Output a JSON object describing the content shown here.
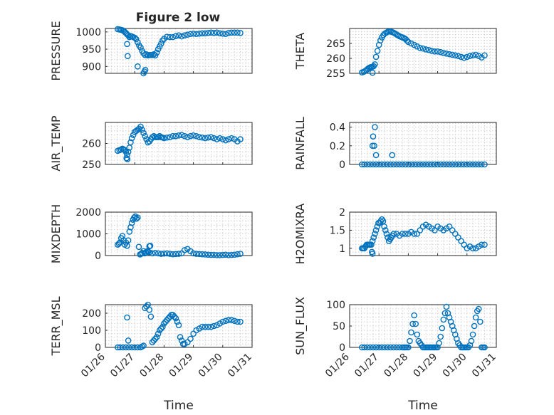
{
  "figure": {
    "title": "Figure 2 low",
    "xlabel": "Time"
  },
  "chart_data": [
    {
      "type": "scatter",
      "ylabel": "PRESSURE",
      "ylim": [
        880,
        1010
      ],
      "yticks": [
        900,
        950,
        1000
      ],
      "xlim": [
        0,
        5
      ],
      "xticks": [
        "01/26",
        "01/27",
        "01/28",
        "01/29",
        "01/30",
        "01/31"
      ],
      "x": [
        0.42,
        0.48,
        0.53,
        0.58,
        0.62,
        0.66,
        0.7,
        0.74,
        0.78,
        0.82,
        0.86,
        0.9,
        0.95,
        1.0,
        1.05,
        1.1,
        1.15,
        1.2,
        1.25,
        1.3,
        1.35,
        1.4,
        1.45,
        1.5,
        1.55,
        1.6,
        1.65,
        1.7,
        1.75,
        1.8,
        1.85,
        1.9,
        1.95,
        2.0,
        2.1,
        2.2,
        2.3,
        2.4,
        2.5,
        2.6,
        2.7,
        2.8,
        2.9,
        3.0,
        3.1,
        3.2,
        3.3,
        3.4,
        3.5,
        3.6,
        3.7,
        3.8,
        3.9,
        4.0,
        4.1,
        4.2,
        4.3,
        4.4,
        4.5,
        4.6,
        0.74,
        0.76,
        1.1,
        1.3,
        1.33,
        1.36
      ],
      "y": [
        1008,
        1007,
        1006,
        1005,
        1003,
        1000,
        997,
        993,
        990,
        985,
        988,
        987,
        985,
        983,
        979,
        970,
        961,
        955,
        945,
        938,
        933,
        935,
        932,
        933,
        933,
        933,
        935,
        932,
        940,
        950,
        958,
        966,
        975,
        980,
        986,
        985,
        985,
        988,
        990,
        987,
        990,
        992,
        994,
        995,
        994,
        995,
        996,
        996,
        997,
        998,
        997,
        998,
        996,
        995,
        994,
        997,
        998,
        998,
        998,
        997,
        965,
        930,
        900,
        880,
        885,
        890
      ]
    },
    {
      "type": "scatter",
      "ylabel": "THETA",
      "ylim": [
        255,
        270
      ],
      "yticks": [
        255,
        260,
        265
      ],
      "xlim": [
        0,
        5
      ],
      "xticks": [
        "01/26",
        "01/27",
        "01/28",
        "01/29",
        "01/30",
        "01/31"
      ],
      "x": [
        0.42,
        0.48,
        0.53,
        0.58,
        0.62,
        0.66,
        0.7,
        0.74,
        0.78,
        0.82,
        0.86,
        0.9,
        0.95,
        1.0,
        1.05,
        1.1,
        1.15,
        1.2,
        1.25,
        1.3,
        1.35,
        1.4,
        1.45,
        1.5,
        1.55,
        1.6,
        1.65,
        1.7,
        1.75,
        1.8,
        1.85,
        1.9,
        1.95,
        2.0,
        2.1,
        2.2,
        2.3,
        2.4,
        2.5,
        2.6,
        2.7,
        2.8,
        2.9,
        3.0,
        3.1,
        3.2,
        3.3,
        3.4,
        3.5,
        3.6,
        3.7,
        3.8,
        3.9,
        4.0,
        4.1,
        4.2,
        4.3,
        4.4,
        4.5,
        4.6,
        0.78
      ],
      "y": [
        255.3,
        255.5,
        255.8,
        256.1,
        256.5,
        256.8,
        257.0,
        257.1,
        257.2,
        257.4,
        258.0,
        260.5,
        262.5,
        264.5,
        266.0,
        267.0,
        267.8,
        268.3,
        268.6,
        268.9,
        269.0,
        269.0,
        268.8,
        268.6,
        268.3,
        268.0,
        267.7,
        267.4,
        267.2,
        267.0,
        266.8,
        266.5,
        266.0,
        265.5,
        265.0,
        264.5,
        264.0,
        263.5,
        263.3,
        263.0,
        262.8,
        262.5,
        262.3,
        262.3,
        262.1,
        261.8,
        261.6,
        261.4,
        261.2,
        261.0,
        260.8,
        260.5,
        260.2,
        260.5,
        260.8,
        261.0,
        261.2,
        260.8,
        260.3,
        261.0,
        255.2
      ]
    },
    {
      "type": "scatter",
      "ylabel": "AIR_TEMP",
      "ylim": [
        250,
        270
      ],
      "yticks": [
        250,
        260
      ],
      "xlim": [
        0,
        5
      ],
      "xticks": [
        "01/26",
        "01/27",
        "01/28",
        "01/29",
        "01/30",
        "01/31"
      ],
      "x": [
        0.42,
        0.48,
        0.53,
        0.58,
        0.62,
        0.66,
        0.7,
        0.74,
        0.78,
        0.82,
        0.86,
        0.9,
        0.95,
        1.0,
        1.05,
        1.1,
        1.15,
        1.2,
        1.25,
        1.3,
        1.35,
        1.4,
        1.45,
        1.5,
        1.55,
        1.6,
        1.65,
        1.7,
        1.75,
        1.8,
        1.85,
        1.9,
        1.95,
        2.0,
        2.1,
        2.2,
        2.3,
        2.4,
        2.5,
        2.6,
        2.7,
        2.8,
        2.9,
        3.0,
        3.1,
        3.2,
        3.3,
        3.4,
        3.5,
        3.6,
        3.7,
        3.8,
        3.9,
        4.0,
        4.1,
        4.2,
        4.3,
        4.4,
        4.5,
        4.6,
        0.72,
        0.75
      ],
      "y": [
        256.5,
        256.8,
        257.0,
        257.5,
        257.2,
        256.8,
        256.0,
        254.5,
        256.0,
        258.0,
        260.5,
        262.5,
        264.0,
        265.5,
        266.0,
        266.5,
        267.0,
        268.0,
        266.5,
        265.0,
        263.5,
        262.0,
        260.5,
        261.0,
        262.0,
        263.0,
        263.5,
        263.0,
        263.0,
        263.0,
        263.5,
        263.0,
        262.8,
        262.5,
        262.8,
        263.0,
        263.5,
        263.5,
        263.8,
        264.0,
        263.5,
        263.0,
        263.5,
        263.8,
        263.5,
        263.0,
        262.8,
        262.5,
        262.8,
        263.0,
        262.5,
        262.0,
        262.5,
        262.0,
        261.5,
        262.0,
        262.5,
        262.0,
        261.0,
        262.0,
        253.0,
        252.5
      ]
    },
    {
      "type": "scatter",
      "ylabel": "RAINFALL",
      "ylim": [
        0,
        0.45
      ],
      "yticks": [
        0,
        0.2,
        0.4
      ],
      "xlim": [
        0,
        5
      ],
      "xticks": [
        "01/26",
        "01/27",
        "01/28",
        "01/29",
        "01/30",
        "01/31"
      ],
      "x": [
        0.42,
        0.5,
        0.6,
        0.7,
        0.8,
        0.9,
        1.0,
        1.1,
        1.2,
        1.3,
        1.4,
        1.5,
        1.6,
        1.7,
        1.8,
        1.9,
        2.0,
        2.1,
        2.2,
        2.3,
        2.4,
        2.5,
        2.6,
        2.7,
        2.8,
        2.9,
        3.0,
        3.1,
        3.2,
        3.3,
        3.4,
        3.5,
        3.6,
        3.7,
        3.8,
        3.9,
        4.0,
        4.1,
        4.2,
        4.3,
        4.4,
        4.5,
        4.6,
        0.78,
        0.8,
        0.84,
        0.86,
        0.9,
        1.45
      ],
      "y": [
        0,
        0,
        0,
        0,
        0,
        0,
        0,
        0,
        0,
        0,
        0,
        0,
        0,
        0,
        0,
        0,
        0,
        0,
        0,
        0,
        0,
        0,
        0,
        0,
        0,
        0,
        0,
        0,
        0,
        0,
        0,
        0,
        0,
        0,
        0,
        0,
        0,
        0,
        0,
        0,
        0,
        0,
        0,
        0.2,
        0.3,
        0.2,
        0.4,
        0.1,
        0.1
      ]
    },
    {
      "type": "scatter",
      "ylabel": "MIXDEPTH",
      "ylim": [
        0,
        2000
      ],
      "yticks": [
        0,
        1000,
        2000
      ],
      "xlim": [
        0,
        5
      ],
      "xticks": [
        "01/26",
        "01/27",
        "01/28",
        "01/29",
        "01/30",
        "01/31"
      ],
      "x": [
        0.42,
        0.46,
        0.5,
        0.54,
        0.58,
        0.62,
        0.66,
        0.7,
        0.74,
        0.78,
        0.82,
        0.86,
        0.9,
        0.94,
        0.98,
        1.02,
        1.06,
        1.1,
        1.14,
        1.18,
        1.22,
        1.26,
        1.3,
        1.34,
        1.38,
        1.42,
        1.46,
        1.5,
        1.6,
        1.7,
        1.8,
        1.9,
        2.0,
        2.1,
        2.2,
        2.3,
        2.4,
        2.5,
        2.6,
        2.7,
        2.8,
        2.9,
        3.0,
        3.1,
        3.2,
        3.3,
        3.4,
        3.5,
        3.6,
        3.7,
        3.8,
        3.9,
        4.0,
        4.1,
        4.2,
        4.3,
        4.4,
        4.5,
        4.6,
        1.5,
        1.53
      ],
      "y": [
        500,
        550,
        600,
        800,
        900,
        700,
        500,
        600,
        450,
        700,
        1100,
        1300,
        1500,
        1650,
        1750,
        1800,
        1700,
        1750,
        400,
        50,
        80,
        120,
        200,
        100,
        150,
        200,
        180,
        150,
        100,
        120,
        100,
        80,
        90,
        100,
        80,
        60,
        70,
        80,
        100,
        250,
        300,
        200,
        100,
        80,
        70,
        60,
        50,
        40,
        30,
        30,
        20,
        20,
        30,
        40,
        20,
        30,
        40,
        60,
        80,
        430,
        450
      ]
    },
    {
      "type": "scatter",
      "ylabel": "H2OMIXRA",
      "ylim": [
        0.8,
        2
      ],
      "yticks": [
        1,
        1.5,
        2
      ],
      "xlim": [
        0,
        5
      ],
      "xticks": [
        "01/26",
        "01/27",
        "01/28",
        "01/29",
        "01/30",
        "01/31"
      ],
      "x": [
        0.42,
        0.46,
        0.5,
        0.54,
        0.58,
        0.62,
        0.66,
        0.7,
        0.74,
        0.78,
        0.82,
        0.86,
        0.9,
        0.94,
        0.98,
        1.02,
        1.06,
        1.1,
        1.14,
        1.18,
        1.22,
        1.26,
        1.3,
        1.34,
        1.38,
        1.42,
        1.46,
        1.5,
        1.6,
        1.7,
        1.8,
        1.9,
        2.0,
        2.1,
        2.2,
        2.3,
        2.4,
        2.5,
        2.6,
        2.7,
        2.8,
        2.9,
        3.0,
        3.1,
        3.2,
        3.3,
        3.4,
        3.5,
        3.6,
        3.7,
        3.8,
        3.9,
        4.0,
        4.1,
        4.2,
        4.3,
        4.4,
        4.5,
        4.6,
        0.76,
        0.78
      ],
      "y": [
        1.0,
        1.0,
        1.0,
        1.05,
        1.1,
        1.1,
        1.1,
        1.1,
        1.1,
        1.2,
        1.3,
        1.4,
        1.5,
        1.6,
        1.7,
        1.7,
        1.75,
        1.8,
        1.75,
        1.6,
        1.5,
        1.4,
        1.3,
        1.2,
        1.25,
        1.3,
        1.35,
        1.4,
        1.4,
        1.35,
        1.4,
        1.4,
        1.4,
        1.45,
        1.4,
        1.4,
        1.5,
        1.6,
        1.65,
        1.6,
        1.55,
        1.5,
        1.6,
        1.55,
        1.5,
        1.55,
        1.6,
        1.5,
        1.4,
        1.3,
        1.2,
        1.1,
        1.0,
        1.05,
        1.0,
        1.0,
        1.05,
        1.1,
        1.1,
        0.9,
        0.85
      ]
    },
    {
      "type": "scatter",
      "ylabel": "TERR_MSL",
      "ylim": [
        0,
        250
      ],
      "yticks": [
        0,
        100,
        200
      ],
      "xlim": [
        0,
        5
      ],
      "xticks": [
        "01/26",
        "01/27",
        "01/28",
        "01/29",
        "01/30",
        "01/31"
      ],
      "x": [
        0.42,
        0.5,
        0.6,
        0.7,
        0.8,
        0.9,
        1.0,
        1.1,
        1.2,
        1.25,
        1.3,
        1.35,
        1.4,
        1.45,
        1.5,
        1.55,
        1.6,
        1.65,
        1.7,
        1.75,
        1.8,
        1.85,
        1.9,
        1.95,
        2.0,
        2.05,
        2.1,
        2.15,
        2.2,
        2.25,
        2.3,
        2.35,
        2.4,
        2.45,
        2.5,
        2.55,
        2.6,
        2.65,
        2.7,
        2.8,
        2.9,
        3.0,
        3.1,
        3.2,
        3.3,
        3.4,
        3.5,
        3.6,
        3.7,
        3.8,
        3.9,
        4.0,
        4.1,
        4.2,
        4.3,
        4.4,
        4.5,
        4.6,
        0.74,
        0.78
      ],
      "y": [
        0,
        0,
        0,
        0,
        0,
        0,
        0,
        0,
        0,
        5,
        10,
        230,
        240,
        250,
        220,
        180,
        30,
        40,
        50,
        60,
        80,
        100,
        110,
        120,
        140,
        150,
        160,
        170,
        180,
        190,
        190,
        180,
        170,
        150,
        130,
        60,
        40,
        20,
        20,
        30,
        50,
        80,
        100,
        110,
        120,
        120,
        120,
        120,
        125,
        130,
        140,
        150,
        155,
        160,
        160,
        155,
        150,
        150,
        175,
        40
      ]
    },
    {
      "type": "scatter",
      "ylabel": "SUN_FLUX",
      "ylim": [
        0,
        100
      ],
      "yticks": [
        0,
        50,
        100
      ],
      "xlim": [
        0,
        5
      ],
      "xticks": [
        "01/26",
        "01/27",
        "01/28",
        "01/29",
        "01/30",
        "01/31"
      ],
      "x": [
        0.42,
        0.5,
        0.6,
        0.7,
        0.8,
        0.9,
        1.0,
        1.1,
        1.2,
        1.3,
        1.4,
        1.5,
        1.6,
        1.7,
        1.8,
        1.85,
        1.9,
        1.95,
        2.0,
        2.05,
        2.1,
        2.15,
        2.2,
        2.25,
        2.3,
        2.35,
        2.4,
        2.45,
        2.5,
        2.55,
        2.6,
        2.65,
        2.7,
        2.75,
        2.8,
        2.85,
        2.9,
        2.95,
        3.0,
        3.05,
        3.1,
        3.15,
        3.2,
        3.25,
        3.3,
        3.35,
        3.4,
        3.45,
        3.5,
        3.55,
        3.6,
        3.65,
        3.7,
        3.75,
        3.8,
        3.85,
        3.9,
        3.95,
        4.0,
        4.05,
        4.1,
        4.15,
        4.2,
        4.25,
        4.3,
        4.35,
        4.4,
        4.45,
        4.5,
        4.55,
        4.6
      ],
      "y": [
        0,
        0,
        0,
        0,
        0,
        0,
        0,
        0,
        0,
        0,
        0,
        0,
        0,
        0,
        0,
        0,
        0,
        0,
        0,
        15,
        35,
        55,
        75,
        55,
        30,
        15,
        10,
        5,
        0,
        0,
        0,
        0,
        0,
        0,
        0,
        0,
        0,
        0,
        0,
        10,
        25,
        45,
        65,
        80,
        95,
        80,
        70,
        60,
        50,
        40,
        30,
        20,
        10,
        5,
        0,
        0,
        0,
        0,
        0,
        0,
        5,
        15,
        30,
        50,
        70,
        85,
        90,
        60,
        0,
        0,
        0
      ]
    }
  ]
}
